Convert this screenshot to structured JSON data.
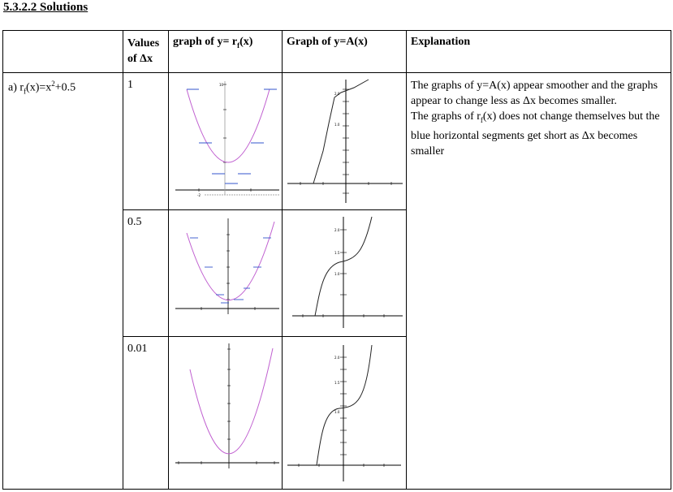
{
  "heading": "5.3.2.2 Solutions",
  "table": {
    "headers": {
      "values_a": "Values",
      "values_b": "of Δx",
      "graph_r": "graph of y= r",
      "graph_r_sub": "f",
      "graph_r_tail": "(x)",
      "graph_a": "Graph of y=A(x)",
      "explanation": "Explanation"
    },
    "row_label": {
      "prefix": "a) r",
      "sub": "f",
      "mid": "(x)=x",
      "sup": "2",
      "tail": "+0.5"
    },
    "dx_values": [
      "1",
      "0.5",
      "0.01"
    ],
    "explanation": {
      "line1": "The graphs of y=A(x) appear smoother and the graphs appear to change less as Δx becomes smaller.",
      "line2_prefix": "The graphs of r",
      "line2_sub": "f",
      "line2_tail": "(x) does not change themselves but the blue horizontal segments get short as Δx becomes smaller"
    }
  },
  "colors": {
    "parabola": "#c060d0",
    "segments": "#3355cc",
    "curve": "#222222",
    "axis": "#000000"
  }
}
